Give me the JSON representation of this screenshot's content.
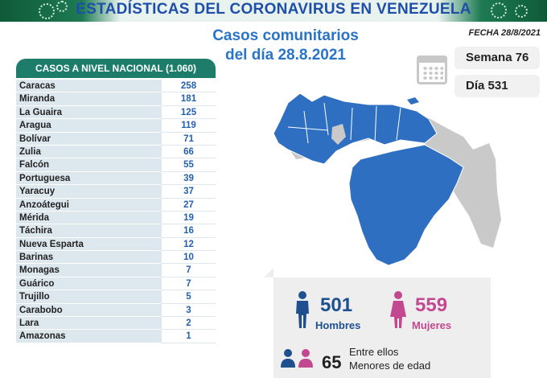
{
  "header": {
    "title": "ESTADÍSTICAS DEL CORONAVIRUS EN VENEZUELA",
    "subtitle_line1": "Casos comunitarios",
    "subtitle_line2": "del día 28.8.2021",
    "date_label": "FECHA 28/8/2021"
  },
  "calendar": {
    "week": "Semana 76",
    "day": "Día 531"
  },
  "table": {
    "title": "CASOS A NIVEL NACIONAL (1.060)",
    "rows": [
      {
        "state": "Caracas",
        "cases": "258"
      },
      {
        "state": "Miranda",
        "cases": "181"
      },
      {
        "state": "La Guaira",
        "cases": "125"
      },
      {
        "state": "Aragua",
        "cases": "119"
      },
      {
        "state": "Bolívar",
        "cases": "71"
      },
      {
        "state": "Zulia",
        "cases": "66"
      },
      {
        "state": "Falcón",
        "cases": "55"
      },
      {
        "state": "Portuguesa",
        "cases": "39"
      },
      {
        "state": "Yaracuy",
        "cases": "37"
      },
      {
        "state": "Anzoátegui",
        "cases": "27"
      },
      {
        "state": "Mérida",
        "cases": "19"
      },
      {
        "state": "Táchira",
        "cases": "16"
      },
      {
        "state": "Nueva Esparta",
        "cases": "12"
      },
      {
        "state": "Barinas",
        "cases": "10"
      },
      {
        "state": "Monagas",
        "cases": "7"
      },
      {
        "state": "Guárico",
        "cases": "7"
      },
      {
        "state": "Trujillo",
        "cases": "5"
      },
      {
        "state": "Carabobo",
        "cases": "3"
      },
      {
        "state": "Lara",
        "cases": "2"
      },
      {
        "state": "Amazonas",
        "cases": "1"
      }
    ]
  },
  "stats": {
    "men_count": "501",
    "men_label": "Hombres",
    "women_count": "559",
    "women_label": "Mujeres",
    "minors_count": "65",
    "minors_line1": "Entre ellos",
    "minors_line2": "Menores de edad"
  },
  "colors": {
    "map_highlight": "#2f6fc2",
    "map_base": "#c9c9c9",
    "men": "#1e4f8f",
    "women": "#c2488f",
    "table_header": "#1d7d6a"
  }
}
